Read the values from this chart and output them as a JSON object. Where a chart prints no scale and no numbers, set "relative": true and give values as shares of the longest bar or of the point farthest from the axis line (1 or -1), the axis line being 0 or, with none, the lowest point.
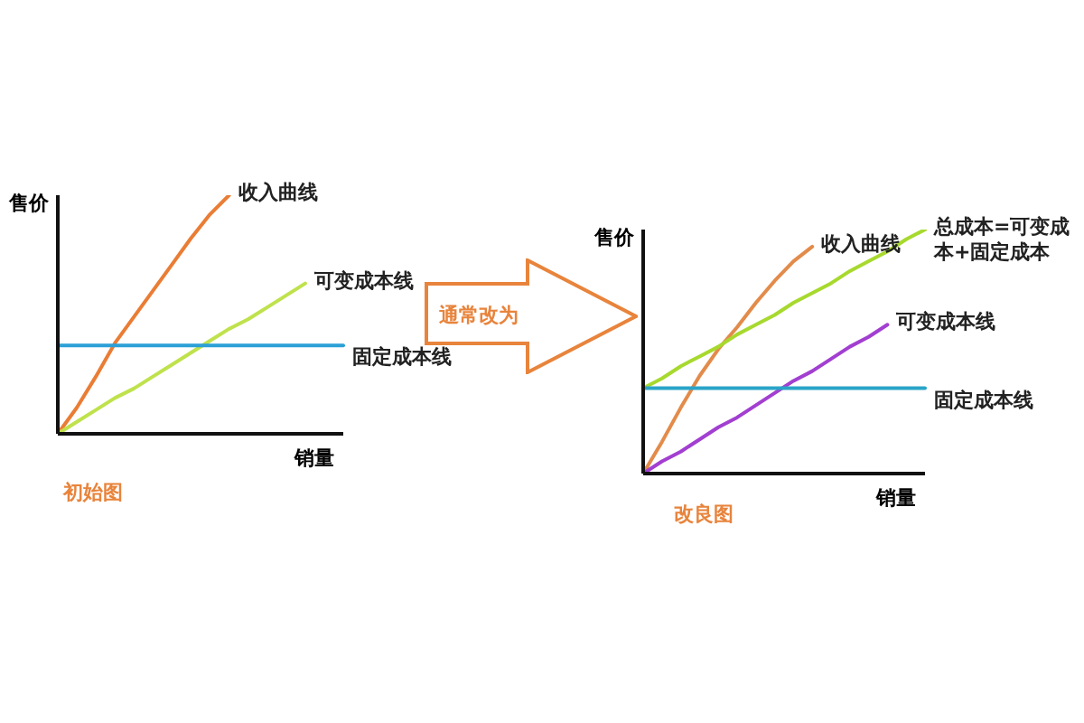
{
  "chart_data": [
    {
      "type": "line",
      "relative": true,
      "xlabel": "销量",
      "ylabel": "售价",
      "annotations": [
        "初始图",
        "通常改为"
      ],
      "categories": [
        null,
        null,
        null,
        null,
        null,
        null,
        null,
        null,
        null,
        null,
        null,
        null,
        null,
        null,
        null,
        null
      ],
      "series": [
        {
          "name": "收入曲线",
          "color": "#ea7d35",
          "values": [
            0,
            0.11,
            0.24,
            0.38,
            0.49,
            0.6,
            0.71,
            0.82,
            0.92,
            1,
            null,
            null,
            null,
            null,
            null,
            null
          ]
        },
        {
          "name": "可变成本线",
          "color": "#bfe24c",
          "values": [
            0,
            0.05,
            0.1,
            0.15,
            0.19,
            0.24,
            0.29,
            0.34,
            0.39,
            0.44,
            0.48,
            0.53,
            0.58,
            0.63,
            null,
            null
          ]
        },
        {
          "name": "固定成本线",
          "color": "#2ba0d6",
          "values": [
            0.37,
            0.37,
            0.37,
            0.37,
            0.37,
            0.37,
            0.37,
            0.37,
            0.37,
            0.37,
            0.37,
            0.37,
            0.37,
            0.37,
            0.37,
            0.37
          ]
        }
      ]
    },
    {
      "type": "line",
      "relative": true,
      "xlabel": "销量",
      "ylabel": "售价",
      "annotations": [
        "改良图"
      ],
      "categories": [
        null,
        null,
        null,
        null,
        null,
        null,
        null,
        null,
        null,
        null,
        null,
        null,
        null,
        null,
        null,
        null
      ],
      "series": [
        {
          "name": "收入曲线",
          "color": "#e38b4a",
          "values": [
            0,
            0.13,
            0.27,
            0.4,
            0.51,
            0.6,
            0.7,
            0.79,
            0.87,
            0.93,
            null,
            null,
            null,
            null,
            null,
            null
          ]
        },
        {
          "name": "总成本=可变成本+固定成本",
          "color": "#a7d92e",
          "values": [
            0.35,
            0.39,
            0.44,
            0.48,
            0.52,
            0.57,
            0.61,
            0.65,
            0.7,
            0.74,
            0.78,
            0.83,
            0.87,
            0.91,
            0.96,
            1
          ]
        },
        {
          "name": "可变成本线",
          "color": "#a23fd1",
          "values": [
            0,
            0.05,
            0.09,
            0.14,
            0.19,
            0.23,
            0.28,
            0.33,
            0.38,
            0.42,
            0.47,
            0.52,
            0.56,
            0.61,
            null,
            null
          ]
        },
        {
          "name": "固定成本线",
          "color": "#2aa4c8",
          "values": [
            0.35,
            0.35,
            0.35,
            0.35,
            0.35,
            0.35,
            0.35,
            0.35,
            0.35,
            0.35,
            0.35,
            0.35,
            0.35,
            0.35,
            0.35,
            0.35
          ]
        }
      ]
    }
  ]
}
